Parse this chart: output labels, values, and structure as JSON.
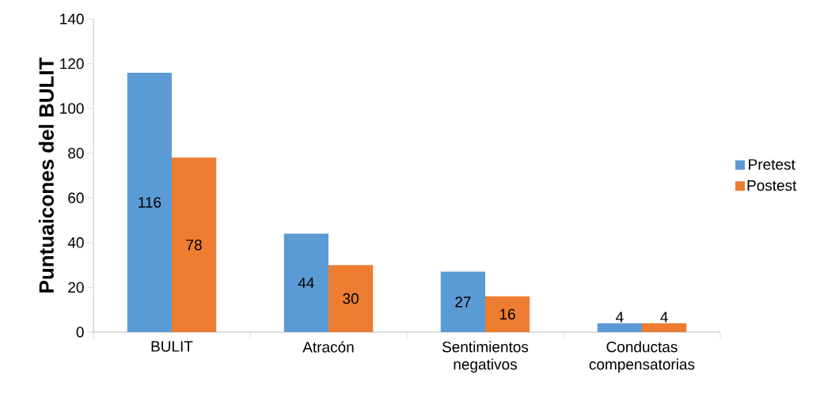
{
  "chart_data": {
    "type": "bar",
    "ylabel": "Puntuaicones del BULIT",
    "categories": [
      "BULIT",
      "Atracón",
      "Sentimientos negativos",
      "Conductas compensatorias"
    ],
    "series": [
      {
        "name": "Pretest",
        "color": "#5b9bd5",
        "values": [
          116,
          44,
          27,
          4
        ]
      },
      {
        "name": "Postest",
        "color": "#ed7d31",
        "values": [
          78,
          30,
          16,
          4
        ]
      }
    ],
    "ylim": [
      0,
      140
    ],
    "yticks": [
      0,
      20,
      40,
      60,
      80,
      100,
      120,
      140
    ],
    "grid": false,
    "legend": "right",
    "data_labels": true
  }
}
